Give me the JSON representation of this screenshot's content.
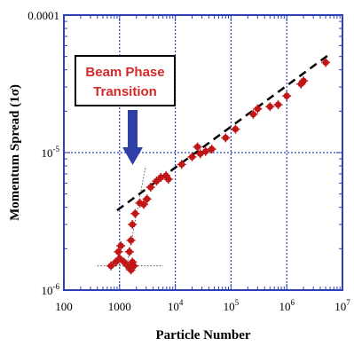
{
  "chart_data": {
    "type": "scatter",
    "xlabel": "Particle Number",
    "ylabel": "Momentum Spread (1σ)",
    "x_scale": "log",
    "y_scale": "log",
    "xlim": [
      100,
      10000000
    ],
    "ylim": [
      1e-06,
      0.0001
    ],
    "grid": true,
    "x_ticks": [
      {
        "base": "100",
        "exp": ""
      },
      {
        "base": "1000",
        "exp": ""
      },
      {
        "base": "10",
        "exp": "4"
      },
      {
        "base": "10",
        "exp": "5"
      },
      {
        "base": "10",
        "exp": "6"
      },
      {
        "base": "10",
        "exp": "7"
      }
    ],
    "y_ticks": [
      {
        "base": "10",
        "exp": "-6"
      },
      {
        "base": "10",
        "exp": "-5"
      },
      {
        "base": "0.0001",
        "exp": ""
      }
    ],
    "annotation": {
      "line1": "Beam Phase",
      "line2": "Transition"
    },
    "colors": {
      "grid": "#2f3fb6",
      "marker": "#c01616",
      "arrow": "#2e3fa6",
      "annotation_text": "#d42a2a"
    },
    "fit_line": {
      "x": [
        900,
        6200000
      ],
      "y": [
        3.8e-06,
        5.28e-05
      ],
      "style": "dashed"
    },
    "thin_lines": [
      {
        "x": [
          1300,
          2900
        ],
        "y": [
          1.4e-06,
          7.8e-06
        ],
        "style": "dotted"
      },
      {
        "x": [
          400,
          6000
        ],
        "y": [
          1.5e-06,
          1.5e-06
        ],
        "style": "dotted"
      }
    ],
    "points": [
      {
        "x": 700,
        "y": 1.5e-06
      },
      {
        "x": 850,
        "y": 1.6e-06
      },
      {
        "x": 950,
        "y": 1.9e-06
      },
      {
        "x": 1050,
        "y": 2.1e-06
      },
      {
        "x": 1000,
        "y": 1.7e-06
      },
      {
        "x": 1200,
        "y": 1.6e-06
      },
      {
        "x": 1400,
        "y": 1.5e-06
      },
      {
        "x": 1600,
        "y": 1.4e-06
      },
      {
        "x": 1500,
        "y": 1.9e-06
      },
      {
        "x": 1700,
        "y": 1.6e-06
      },
      {
        "x": 1800,
        "y": 1.5e-06
      },
      {
        "x": 1600,
        "y": 2.3e-06
      },
      {
        "x": 1700,
        "y": 3e-06
      },
      {
        "x": 1900,
        "y": 3.6e-06
      },
      {
        "x": 2300,
        "y": 4.3e-06
      },
      {
        "x": 2700,
        "y": 4.2e-06
      },
      {
        "x": 3100,
        "y": 4.6e-06
      },
      {
        "x": 3600,
        "y": 5.6e-06
      },
      {
        "x": 4600,
        "y": 6.2e-06
      },
      {
        "x": 5500,
        "y": 6.6e-06
      },
      {
        "x": 6800,
        "y": 6.8e-06
      },
      {
        "x": 7500,
        "y": 6.4e-06
      },
      {
        "x": 13000,
        "y": 8.2e-06
      },
      {
        "x": 20000,
        "y": 9.3e-06
      },
      {
        "x": 25000,
        "y": 1.1e-05
      },
      {
        "x": 28000,
        "y": 9.8e-06
      },
      {
        "x": 35000,
        "y": 1.02e-05
      },
      {
        "x": 45000,
        "y": 1.06e-05
      },
      {
        "x": 80000,
        "y": 1.28e-05
      },
      {
        "x": 120000,
        "y": 1.48e-05
      },
      {
        "x": 250000,
        "y": 1.9e-05
      },
      {
        "x": 300000,
        "y": 2.08e-05
      },
      {
        "x": 500000,
        "y": 2.16e-05
      },
      {
        "x": 700000,
        "y": 2.23e-05
      },
      {
        "x": 1000000,
        "y": 2.58e-05
      },
      {
        "x": 1800000,
        "y": 3.15e-05
      },
      {
        "x": 2000000,
        "y": 3.32e-05
      },
      {
        "x": 5000000,
        "y": 4.52e-05
      }
    ]
  }
}
